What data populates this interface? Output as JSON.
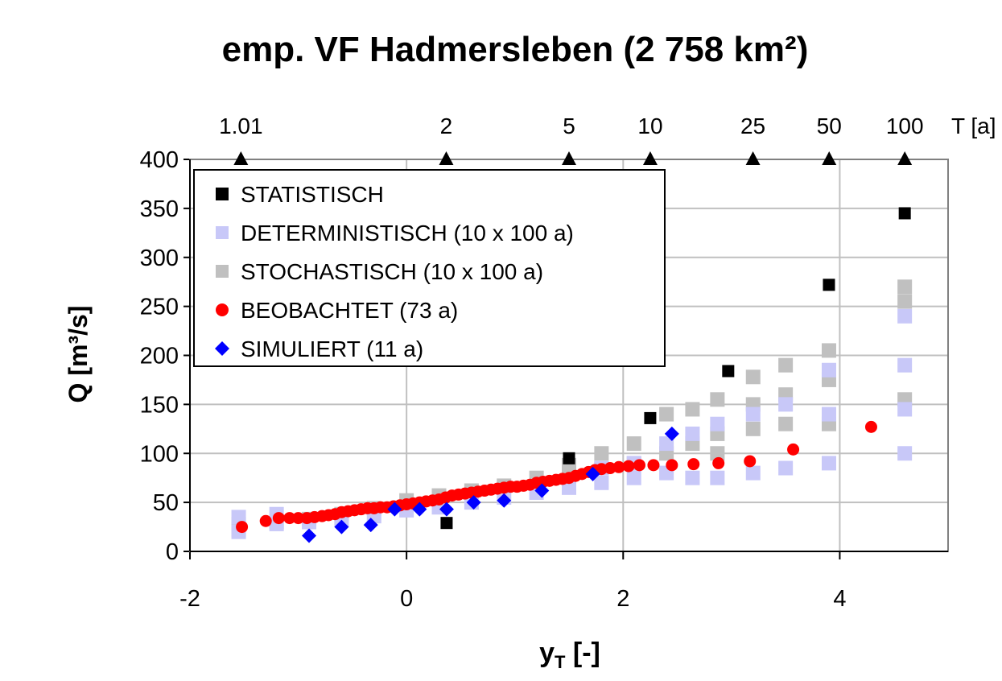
{
  "chart_data": {
    "type": "scatter",
    "title": "emp. VF Hadmersleben (2 758 km²)",
    "xlabel": [
      "y",
      "T",
      " [-]"
    ],
    "ylabel": "Q [m³/s]",
    "x2label": "T [a]",
    "x2scale": "gumbel",
    "xlim": [
      -2,
      5
    ],
    "xticks": [
      -2,
      0,
      2,
      4
    ],
    "ylim": [
      0,
      400
    ],
    "yticks": [
      0,
      50,
      100,
      150,
      200,
      250,
      300,
      350,
      400
    ],
    "x2ticks": [
      1.01,
      2,
      5,
      10,
      25,
      50,
      100
    ],
    "grid": true,
    "legend": "upper left",
    "series": [
      {
        "name": "STATISTISCH",
        "color": "#000000",
        "marker": "square",
        "x": [
          0.37,
          1.5,
          2.25,
          2.97,
          3.9,
          4.6
        ],
        "values": [
          29,
          95,
          136,
          184,
          272,
          345
        ]
      },
      {
        "name": "DETERMINISTISCH (10 x 100 a)",
        "color": "#c8c8f8",
        "marker": "square",
        "x": [
          -1.55,
          -1.55,
          -1.2,
          -1.2,
          -0.9,
          -0.6,
          -0.3,
          0,
          0.3,
          0.6,
          0.9,
          1.2,
          1.5,
          1.8,
          1.8,
          2.1,
          2.1,
          2.4,
          2.4,
          2.64,
          2.64,
          2.87,
          2.87,
          3.2,
          3.2,
          3.5,
          3.5,
          3.9,
          3.9,
          3.9,
          4.6,
          4.6,
          4.6,
          4.6
        ],
        "values": [
          20,
          35,
          28,
          38,
          30,
          32,
          36,
          42,
          45,
          50,
          55,
          60,
          65,
          70,
          85,
          75,
          90,
          80,
          110,
          75,
          120,
          75,
          130,
          80,
          140,
          85,
          150,
          90,
          185,
          140,
          100,
          190,
          240,
          145
        ]
      },
      {
        "name": "STOCHASTISCH (10 x 100 a)",
        "color": "#c0c0c0",
        "marker": "square",
        "x": [
          -1.55,
          -1.55,
          -1.2,
          -0.9,
          -0.6,
          -0.3,
          0,
          0.3,
          0.6,
          0.9,
          1.2,
          1.5,
          1.5,
          1.8,
          1.8,
          2.1,
          2.1,
          2.4,
          2.4,
          2.64,
          2.64,
          2.87,
          2.87,
          2.87,
          3.2,
          3.2,
          3.2,
          3.5,
          3.5,
          3.5,
          3.9,
          3.9,
          3.9,
          4.6,
          4.6,
          4.6
        ],
        "values": [
          22,
          28,
          30,
          33,
          38,
          44,
          52,
          57,
          62,
          67,
          75,
          88,
          75,
          100,
          85,
          110,
          90,
          140,
          100,
          145,
          110,
          155,
          120,
          100,
          178,
          150,
          125,
          190,
          160,
          130,
          205,
          175,
          130,
          270,
          255,
          155
        ]
      },
      {
        "name": "BEOBACHTET (73 a)",
        "color": "#ff0000",
        "marker": "circle",
        "x": [
          -1.52,
          -1.3,
          -1.18,
          -1.08,
          -1.0,
          -0.92,
          -0.85,
          -0.78,
          -0.72,
          -0.66,
          -0.6,
          -0.54,
          -0.48,
          -0.42,
          -0.36,
          -0.3,
          -0.24,
          -0.18,
          -0.12,
          -0.06,
          0.0,
          0.06,
          0.12,
          0.18,
          0.24,
          0.3,
          0.36,
          0.42,
          0.48,
          0.54,
          0.6,
          0.66,
          0.72,
          0.78,
          0.84,
          0.9,
          0.96,
          1.02,
          1.08,
          1.14,
          1.2,
          1.26,
          1.32,
          1.38,
          1.44,
          1.5,
          1.56,
          1.62,
          1.68,
          1.74,
          1.8,
          1.88,
          1.96,
          2.05,
          2.15,
          2.28,
          2.45,
          2.65,
          2.88,
          3.17,
          3.57,
          4.29
        ],
        "values": [
          25,
          31,
          34,
          34,
          34,
          34,
          35,
          36,
          37,
          38,
          40,
          41,
          42,
          43,
          44,
          44,
          45,
          45,
          46,
          47,
          48,
          49,
          50,
          51,
          52,
          53,
          55,
          57,
          58,
          59,
          60,
          61,
          62,
          63,
          64,
          65,
          66,
          66,
          67,
          68,
          70,
          71,
          72,
          73,
          74,
          75,
          77,
          79,
          81,
          83,
          84,
          85,
          86,
          87,
          88,
          88,
          88,
          89,
          90,
          92,
          104,
          127
        ]
      },
      {
        "name": "SIMULIERT (11 a)",
        "color": "#0000ff",
        "marker": "diamond",
        "x": [
          -0.9,
          -0.6,
          -0.33,
          -0.11,
          0.12,
          0.37,
          0.62,
          0.9,
          1.25,
          1.72,
          2.45
        ],
        "values": [
          16,
          25,
          27,
          43,
          43,
          43,
          50,
          52,
          62,
          79,
          120
        ]
      }
    ]
  }
}
